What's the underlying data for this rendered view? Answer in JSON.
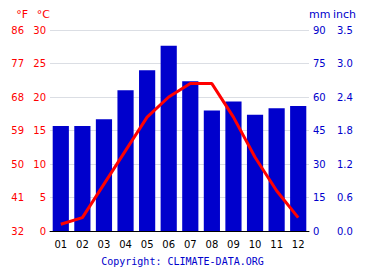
{
  "chart_data": {
    "type": "bar",
    "categories": [
      "01",
      "02",
      "03",
      "04",
      "05",
      "06",
      "07",
      "08",
      "09",
      "10",
      "11",
      "12"
    ],
    "series": [
      {
        "type": "bar",
        "color": "#0000cc",
        "axis": "y2",
        "values": [
          47,
          47,
          50,
          63,
          72,
          83,
          67,
          54,
          58,
          52,
          55,
          56
        ]
      },
      {
        "type": "line",
        "color": "#ff0000",
        "values": [
          1,
          2,
          7,
          12,
          17,
          20,
          22,
          22,
          17,
          11,
          6,
          2
        ]
      }
    ],
    "ylabel": "°C",
    "ylim": [
      0,
      30
    ],
    "yticks": [
      0,
      5,
      10,
      15,
      20,
      25,
      30
    ],
    "y_alt_label": "°F",
    "y_alt_ticks": [
      {
        "value": 0,
        "label": "32"
      },
      {
        "value": 5,
        "label": "41"
      },
      {
        "value": 10,
        "label": "50"
      },
      {
        "value": 15,
        "label": "59"
      },
      {
        "value": 20,
        "label": "68"
      },
      {
        "value": 25,
        "label": "77"
      },
      {
        "value": 30,
        "label": "86"
      }
    ],
    "y2label": "mm",
    "y2lim": [
      0,
      90
    ],
    "y2ticks": [
      0,
      15,
      30,
      45,
      60,
      75,
      90
    ],
    "y2_alt_label": "inch",
    "y2_alt_ticks": [
      {
        "value": 0,
        "label": "0.0"
      },
      {
        "value": 15,
        "label": "0.6"
      },
      {
        "value": 30,
        "label": "1.2"
      },
      {
        "value": 45,
        "label": "1.8"
      },
      {
        "value": 60,
        "label": "2.4"
      },
      {
        "value": 75,
        "label": "3.0"
      },
      {
        "value": 90,
        "label": "3.5"
      }
    ],
    "annotations": [
      "Copyright: CLIMATE-DATA.ORG"
    ],
    "grid": true
  }
}
